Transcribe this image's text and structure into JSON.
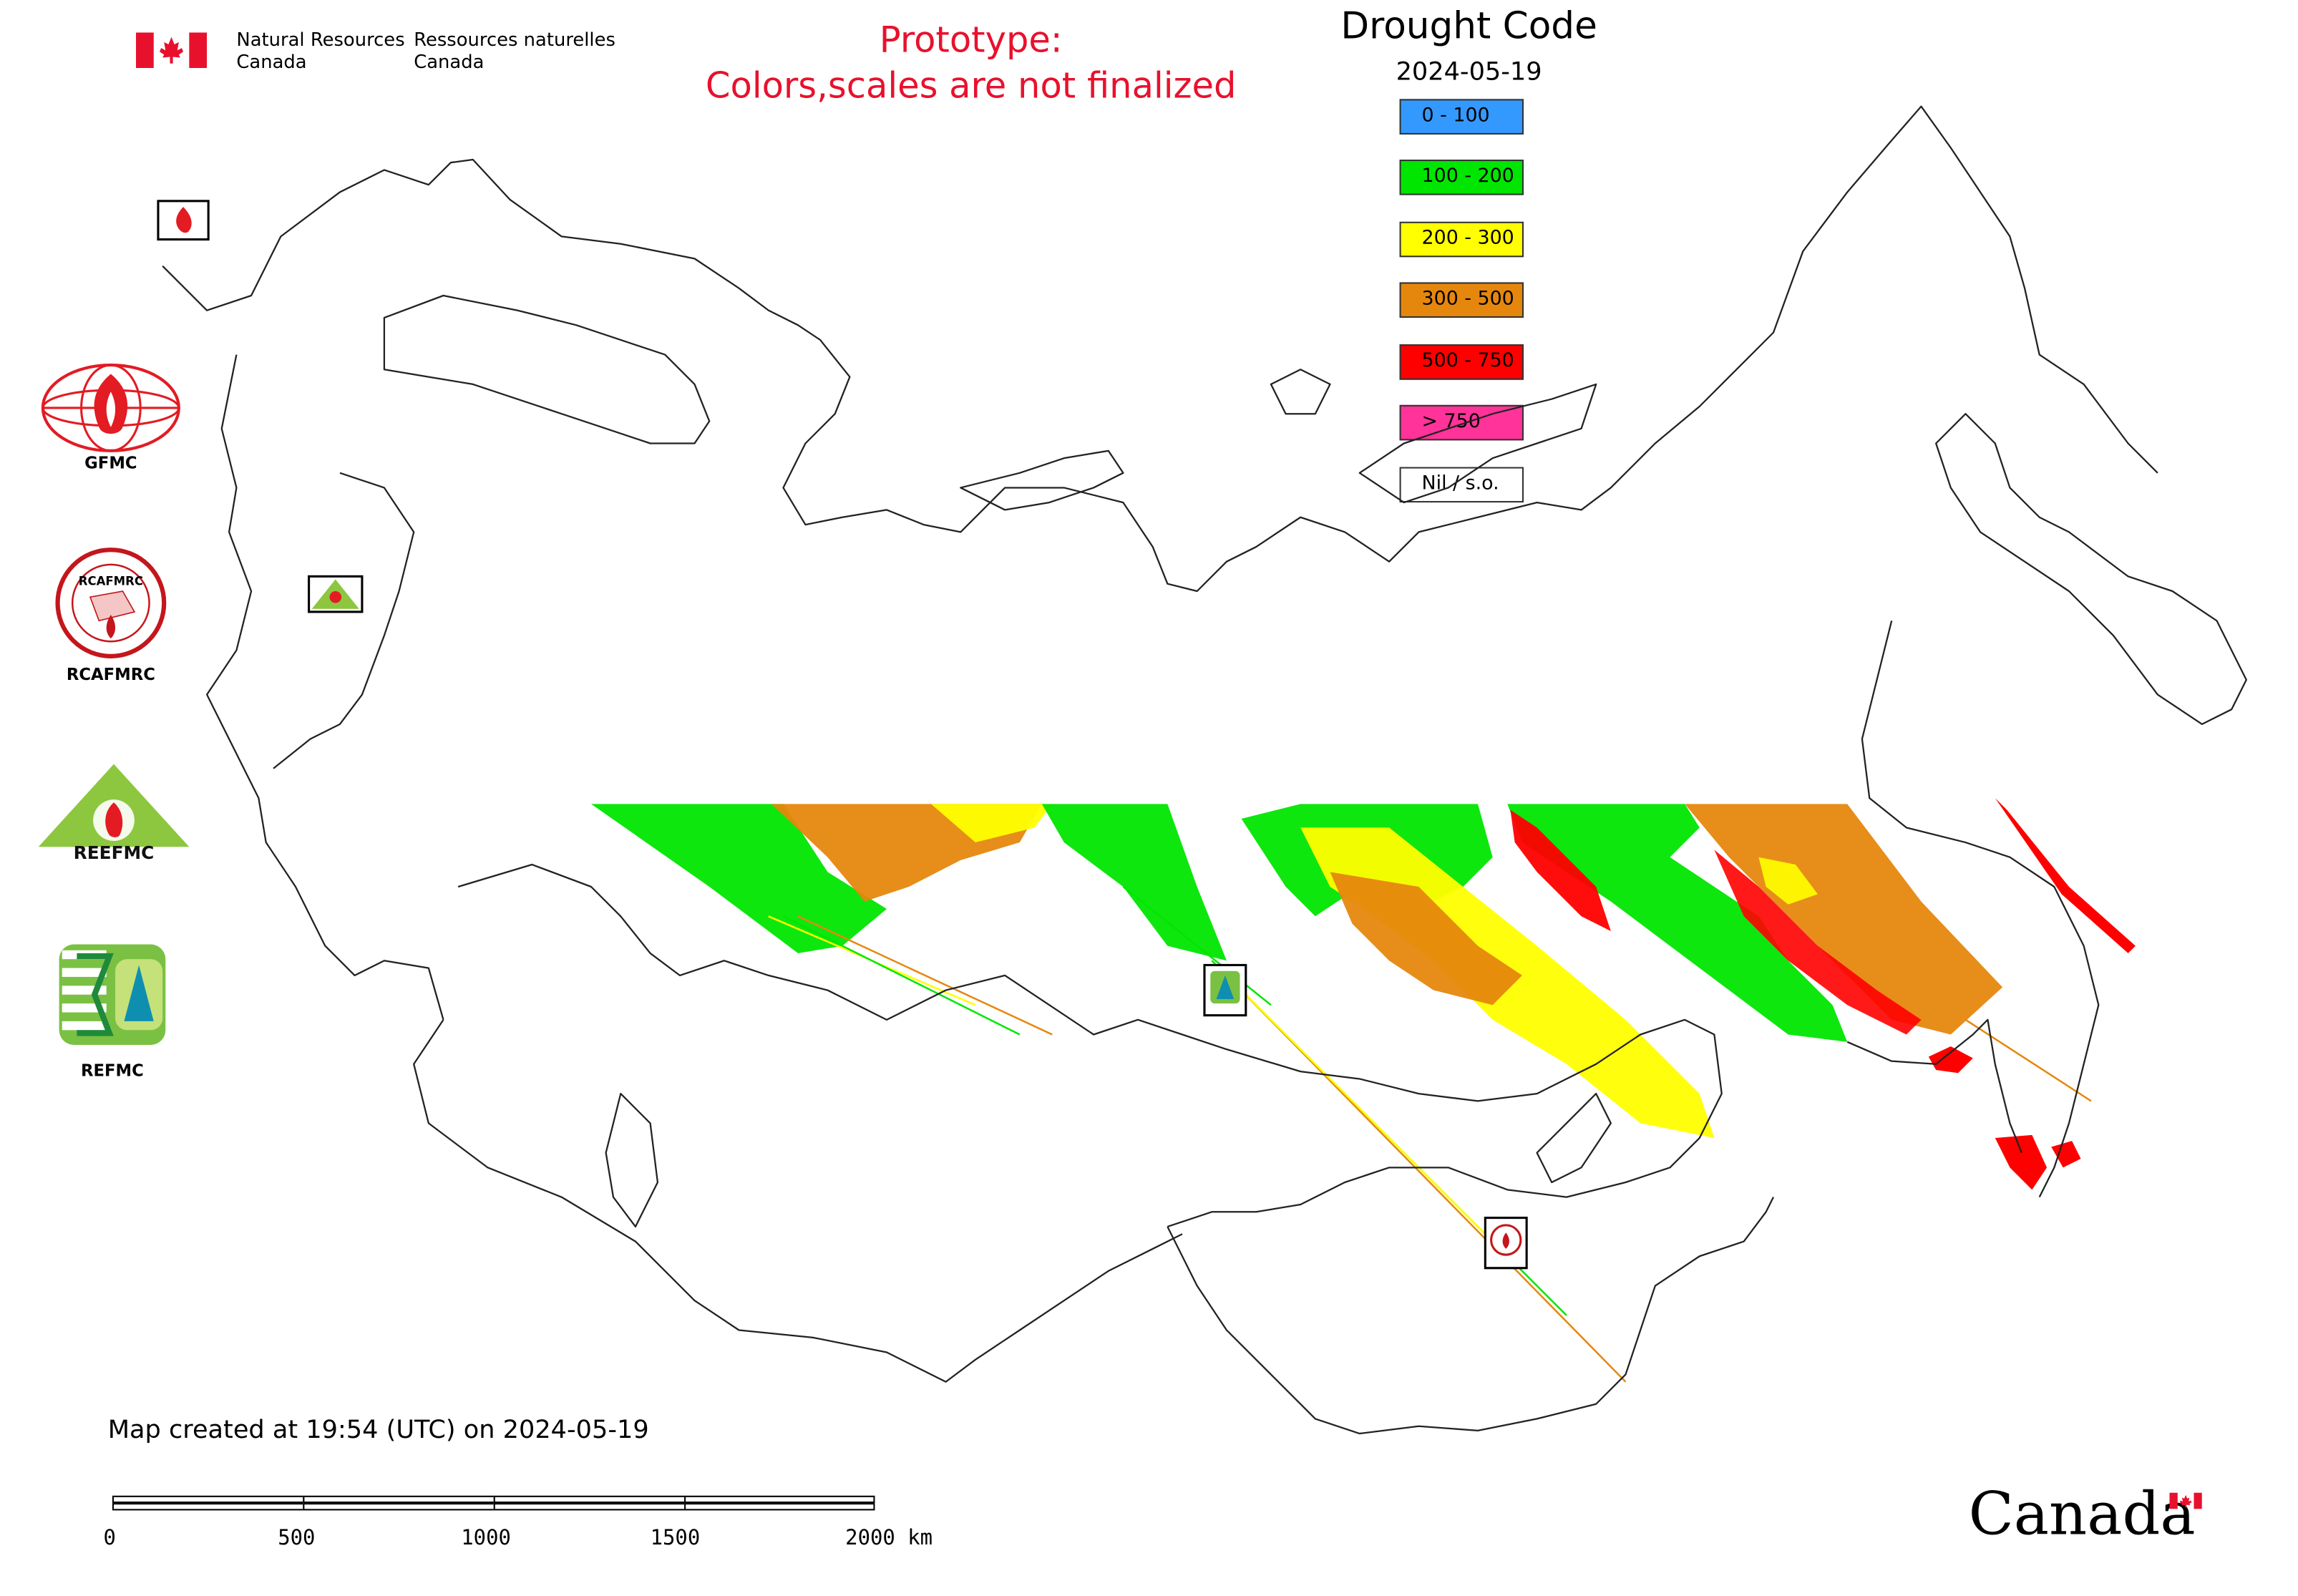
{
  "header": {
    "org_en_1": "Natural Resources",
    "org_en_2": "Canada",
    "org_fr_1": "Ressources naturelles",
    "org_fr_2": "Canada",
    "prototype_1": "Prototype:",
    "prototype_2": "Colors,scales are not finalized",
    "prototype_color": "#e8112d"
  },
  "title": {
    "main": "Drought Code",
    "date": "2024-05-19"
  },
  "legend": [
    {
      "label": "0 - 100",
      "color": "#3399ff"
    },
    {
      "label": "100 - 200",
      "color": "#00e600"
    },
    {
      "label": "200 - 300",
      "color": "#ffff00"
    },
    {
      "label": "300 - 500",
      "color": "#e6870d"
    },
    {
      "label": "500 - 750",
      "color": "#ff0000"
    },
    {
      "label": "> 750",
      "color": "#ff3399"
    },
    {
      "label": "Nil / s.o.",
      "color": "#ffffff"
    }
  ],
  "partners": [
    {
      "label": "GFMC",
      "icon": "gfmc-logo-icon",
      "color": "#e31b23"
    },
    {
      "label": "RCAFMRC",
      "icon": "rcafmrc-logo-icon",
      "color": "#c4161c"
    },
    {
      "label": "",
      "icon": "reefmc-logo-icon",
      "color": "#8dc63f",
      "wordmark": "REEFMC"
    },
    {
      "label": "REFMC",
      "icon": "refmc-logo-icon",
      "color": "#7ac143"
    }
  ],
  "map_markers": [
    {
      "name": "gfmc-marker-icon",
      "label": "GFMC"
    },
    {
      "name": "reefmc-marker-icon",
      "label": "REEFMC"
    },
    {
      "name": "refmc-marker-icon",
      "label": "REFMC"
    },
    {
      "name": "rcafmrc-marker-icon",
      "label": "RCAFMRC"
    }
  ],
  "footer": {
    "created": "Map created at 19:54 (UTC) on 2024-05-19",
    "scale_labels": [
      "0",
      "500",
      "1000",
      "1500",
      "2000 km"
    ],
    "canada_wordmark": "Canada"
  }
}
